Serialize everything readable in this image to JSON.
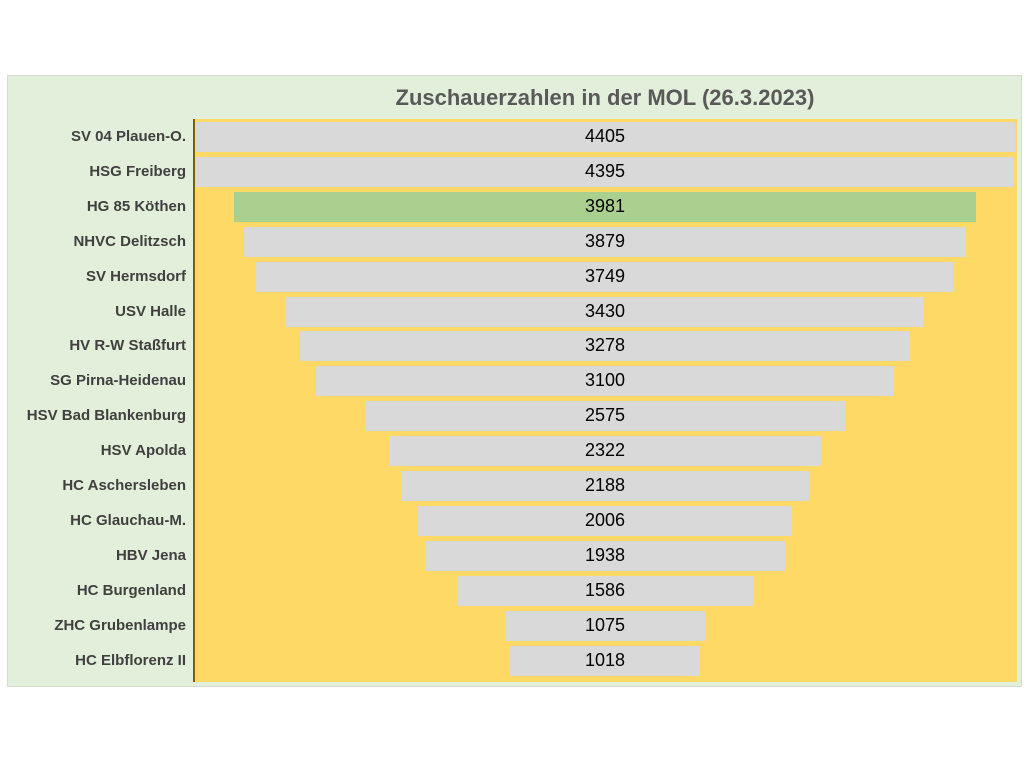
{
  "chart_data": {
    "type": "bar",
    "title": "Zuschauerzahlen in der MOL (26.3.2023)",
    "xlabel": "",
    "ylabel": "",
    "categories": [
      "SV 04 Plauen-O.",
      "HSG Freiberg",
      "HG 85 Köthen",
      "NHVC Delitzsch",
      "SV Hermsdorf",
      "USV Halle",
      "HV R-W Staßfurt",
      "SG Pirna-Heidenau",
      "HSV Bad Blankenburg",
      "HSV Apolda",
      "HC Aschersleben",
      "HC Glauchau-M.",
      "HBV Jena",
      "HC Burgenland",
      "ZHC Grubenlampe",
      "HC Elbflorenz II"
    ],
    "values": [
      4405,
      4395,
      3981,
      3879,
      3749,
      3430,
      3278,
      3100,
      2575,
      2322,
      2188,
      2006,
      1938,
      1586,
      1075,
      1018
    ],
    "highlight_index": 2,
    "orientation": "horizontal-funnel",
    "colors": {
      "frame_background": "#e2efda",
      "plot_background": "#ffd966",
      "bar": "#d9d9d9",
      "highlight_bar": "#a9d08e",
      "title_text": "#595959"
    }
  }
}
